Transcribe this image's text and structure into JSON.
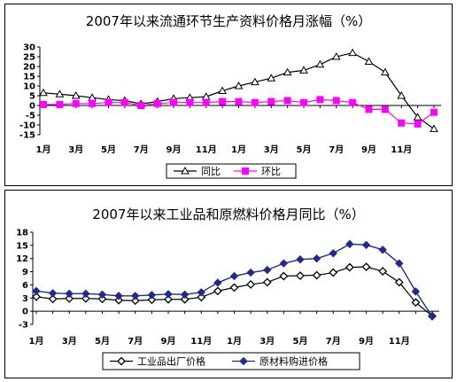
{
  "chart_data": [
    {
      "type": "line",
      "title": "2007年以来流通环节生产资料价格月涨幅（%）",
      "x_tick_labels": [
        "1月",
        "3月",
        "5月",
        "7月",
        "9月",
        "11月",
        "1月",
        "3月",
        "5月",
        "7月",
        "9月",
        "11月"
      ],
      "ylim": [
        -15,
        30
      ],
      "y_ticks": [
        "30",
        "25",
        "20",
        "15",
        "10",
        "5",
        "0",
        "-5",
        "-10",
        "-15"
      ],
      "series": [
        {
          "name": "同比",
          "marker": "triangle-open",
          "color": "#000000",
          "values": [
            6.5,
            5.8,
            5.0,
            4.0,
            3.0,
            2.5,
            0.8,
            2.0,
            3.5,
            4.0,
            4.5,
            7.5,
            10.0,
            12.0,
            14.0,
            17.0,
            18.0,
            21.0,
            25.0,
            27.0,
            22.5,
            17.0,
            5.0,
            -6.0,
            -12.0
          ]
        },
        {
          "name": "环比",
          "marker": "square",
          "color": "#ff00ff",
          "values": [
            0.5,
            0.5,
            1.0,
            1.0,
            1.5,
            1.5,
            0.0,
            1.0,
            1.5,
            1.5,
            1.5,
            2.0,
            2.0,
            1.5,
            2.0,
            2.5,
            1.5,
            3.0,
            2.5,
            1.5,
            -2.0,
            -2.0,
            -9.0,
            -9.5,
            -3.5
          ]
        }
      ],
      "legend_position": "bottom-center"
    },
    {
      "type": "line",
      "title": "2007年以来工业品和原燃料价格月同比（%）",
      "x_tick_labels": [
        "1月",
        "3月",
        "5月",
        "7月",
        "9月",
        "11月",
        "1月",
        "3月",
        "5月",
        "7月",
        "9月",
        "11月"
      ],
      "ylim": [
        -3,
        18
      ],
      "y_ticks": [
        "18",
        "15",
        "12",
        "9",
        "6",
        "3",
        "0",
        "-3"
      ],
      "series": [
        {
          "name": "工业品出厂价格",
          "marker": "diamond-open",
          "color": "#000000",
          "values": [
            3.3,
            2.8,
            2.9,
            2.9,
            2.8,
            2.5,
            2.4,
            2.6,
            2.7,
            2.7,
            3.2,
            4.6,
            5.4,
            6.1,
            6.6,
            8.0,
            8.1,
            8.2,
            8.8,
            10.0,
            10.1,
            9.1,
            6.6,
            2.0,
            -1.1
          ]
        },
        {
          "name": "原材料购进价格",
          "marker": "diamond",
          "color": "#1f2a8a",
          "values": [
            4.6,
            4.1,
            4.0,
            4.0,
            3.8,
            3.5,
            3.5,
            3.7,
            3.9,
            3.8,
            4.3,
            6.5,
            8.0,
            8.8,
            9.4,
            10.9,
            11.8,
            12.0,
            13.2,
            15.3,
            15.1,
            14.0,
            10.9,
            4.5,
            -1.2
          ]
        }
      ],
      "legend_position": "bottom-center"
    }
  ]
}
